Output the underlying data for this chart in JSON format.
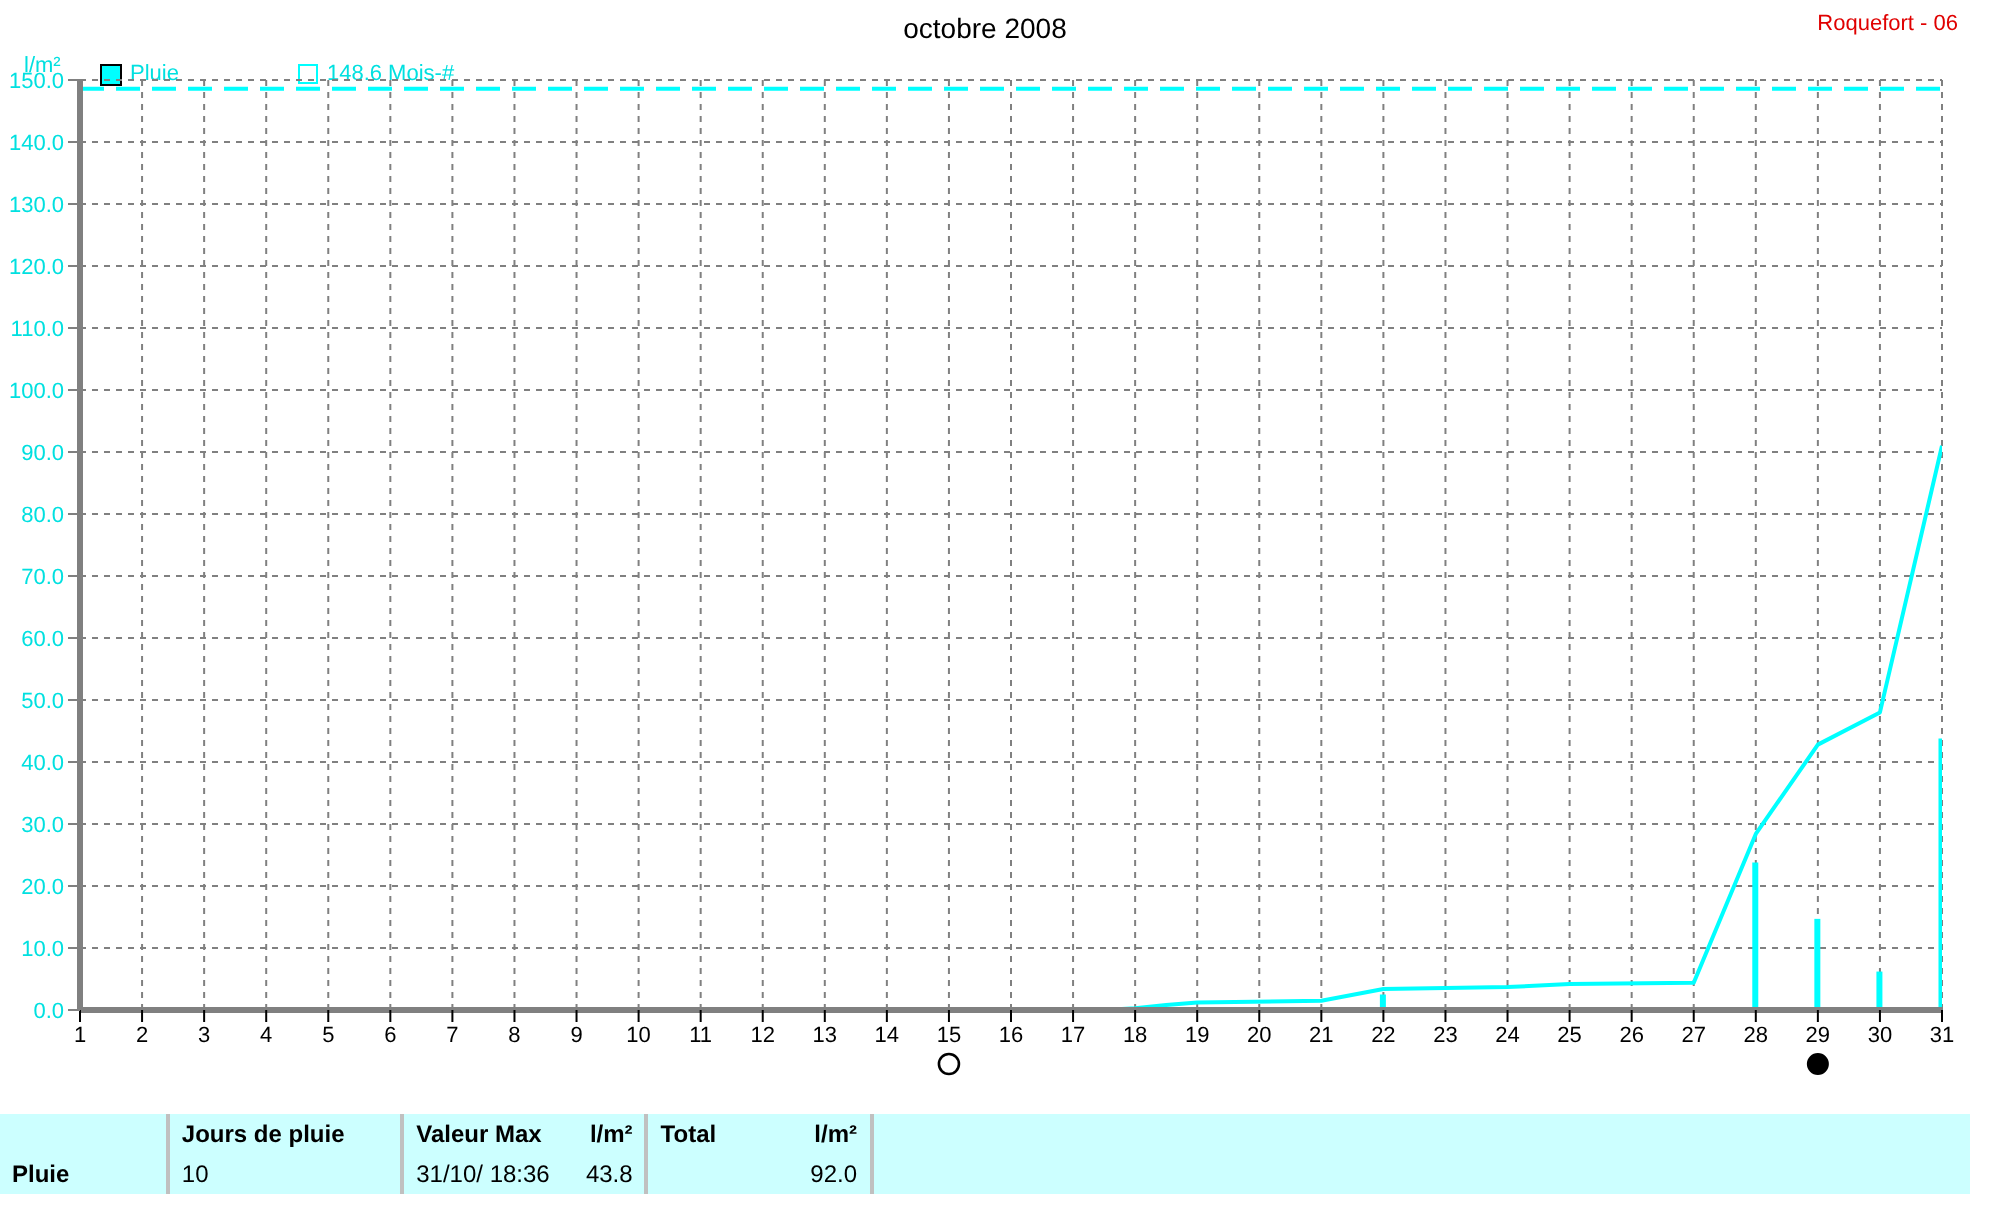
{
  "chart_data": {
    "type": "line",
    "title": "octobre 2008",
    "ylabel": "l/m²",
    "xlim": [
      1,
      31
    ],
    "xticks": [
      1,
      2,
      3,
      4,
      5,
      6,
      7,
      8,
      9,
      10,
      11,
      12,
      13,
      14,
      15,
      16,
      17,
      18,
      19,
      20,
      21,
      22,
      23,
      24,
      25,
      26,
      27,
      28,
      29,
      30,
      31
    ],
    "ylim": [
      0,
      150
    ],
    "yticks": [
      {
        "value": 0,
        "label": "0.0"
      },
      {
        "value": 10,
        "label": "10.0"
      },
      {
        "value": 20,
        "label": "20.0"
      },
      {
        "value": 30,
        "label": "30.0"
      },
      {
        "value": 40,
        "label": "40.0"
      },
      {
        "value": 50,
        "label": "50.0"
      },
      {
        "value": 60,
        "label": "60.0"
      },
      {
        "value": 70,
        "label": "70.0"
      },
      {
        "value": 80,
        "label": "80.0"
      },
      {
        "value": 90,
        "label": "90.0"
      },
      {
        "value": 100,
        "label": "100.0"
      },
      {
        "value": 110,
        "label": "110.0"
      },
      {
        "value": 120,
        "label": "120.0"
      },
      {
        "value": 130,
        "label": "130.0"
      },
      {
        "value": 140,
        "label": "140.0"
      },
      {
        "value": 150,
        "label": "150.0"
      }
    ],
    "grid": true,
    "legend": "top left",
    "marker": "none",
    "line_style": "solid",
    "series": [
      {
        "name": "Pluie",
        "color": "#00ffff",
        "x": [
          17.5,
          18,
          18.5,
          19,
          21,
          22,
          24,
          25,
          27,
          28,
          29,
          30,
          31
        ],
        "values": [
          0,
          0.3,
          0.8,
          1.2,
          1.5,
          3.4,
          3.7,
          4.2,
          4.4,
          28.4,
          42.8,
          48,
          91
        ]
      },
      {
        "type": "bar",
        "color": "#00ffff",
        "x": [
          22,
          28,
          29,
          30,
          31
        ],
        "values": [
          2.5,
          23.8,
          14.7,
          6.2,
          43.8
        ]
      }
    ],
    "ref_lines": [
      {
        "axis": "y",
        "value": 148.6,
        "label": "148.6 Mois-#",
        "color": "#00ffff",
        "line_style": "dashed"
      }
    ],
    "annotations": [
      "Roquefort - 06",
      "Pluie",
      "Jours de pluie",
      "10",
      "Valeur Max",
      "l/m²",
      "31/10/ 18:36",
      "43.8",
      "Total",
      "l/m²",
      "92.0"
    ]
  }
}
